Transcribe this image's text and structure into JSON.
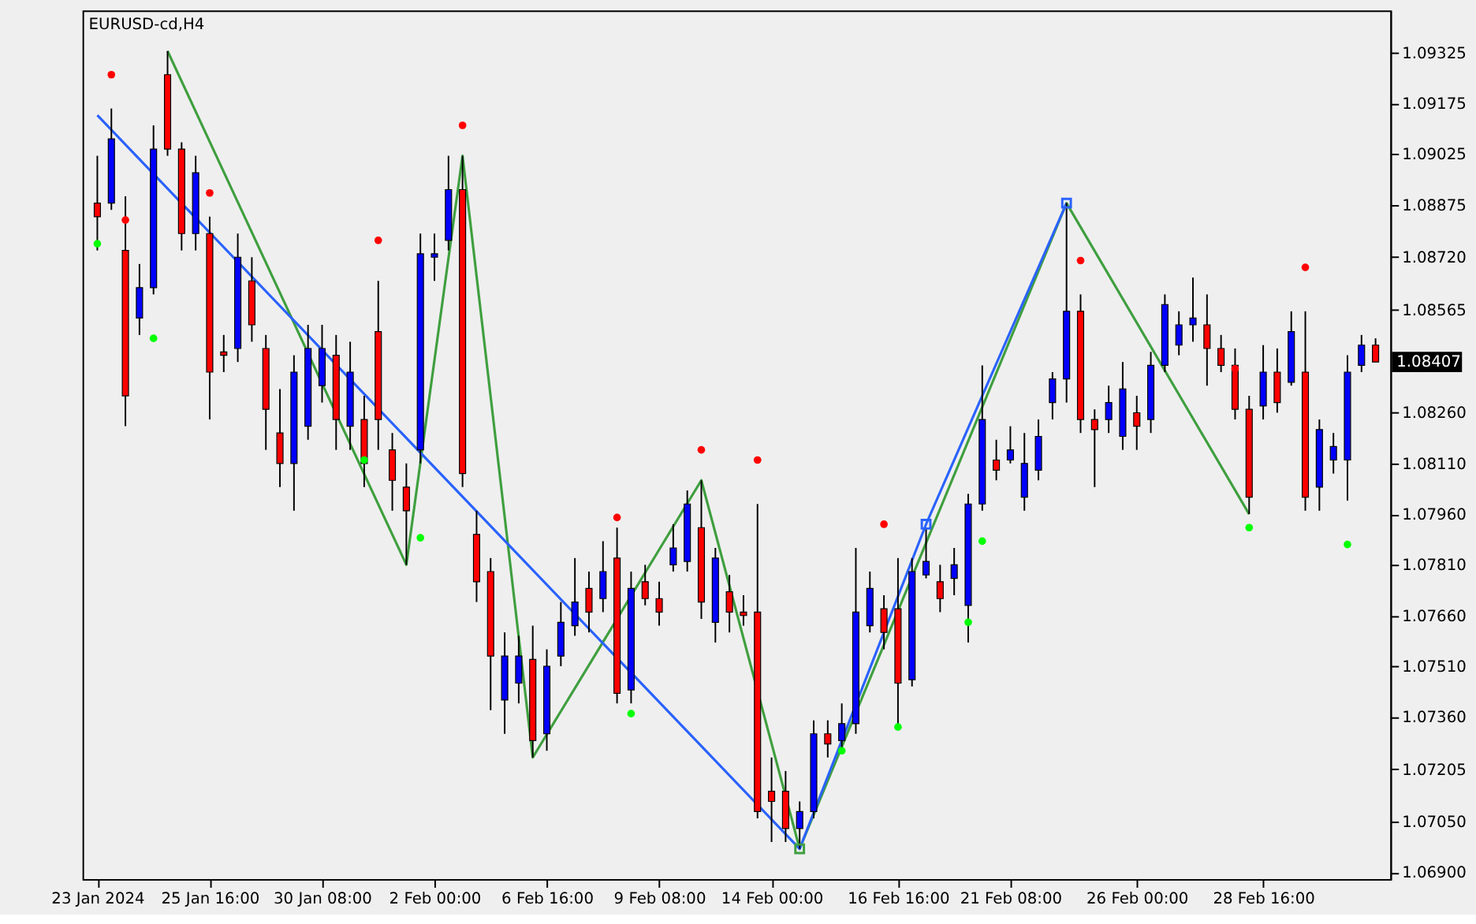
{
  "chart_data": {
    "type": "candlestick",
    "title": "EURUSD-cd,H4",
    "categories": [
      "23 Jan 2024",
      null,
      null,
      null,
      null,
      null,
      null,
      null,
      "25 Jan 16:00",
      null,
      null,
      null,
      null,
      null,
      null,
      null,
      "30 Jan 08:00",
      null,
      null,
      null,
      null,
      null,
      null,
      null,
      "2 Feb 00:00",
      null,
      null,
      null,
      null,
      null,
      null,
      null,
      "6 Feb 16:00",
      null,
      null,
      null,
      null,
      null,
      null,
      null,
      "9 Feb 08:00",
      null,
      null,
      null,
      null,
      null,
      null,
      null,
      "14 Feb 00:00",
      null,
      null,
      null,
      null,
      null,
      null,
      null,
      null,
      "16 Feb 16:00",
      null,
      null,
      null,
      null,
      null,
      null,
      null,
      "21 Feb 08:00",
      null,
      null,
      null,
      null,
      null,
      null,
      null,
      null,
      "26 Feb 00:00",
      null,
      null,
      null,
      null,
      null,
      null,
      null,
      null,
      "28 Feb 16:00",
      null,
      null,
      null,
      null,
      null,
      null,
      null,
      null
    ],
    "ohlc": [
      [
        1.0888,
        1.0902,
        1.0874,
        1.0884
      ],
      [
        1.0888,
        1.0916,
        1.0886,
        1.0907
      ],
      [
        1.0874,
        1.089,
        1.0822,
        1.0831
      ],
      [
        1.0854,
        1.087,
        1.0849,
        1.0863
      ],
      [
        1.0863,
        1.0911,
        1.0861,
        1.0904
      ],
      [
        1.0926,
        1.0933,
        1.0902,
        1.0904
      ],
      [
        1.0904,
        1.0906,
        1.0874,
        1.0879
      ],
      [
        1.0879,
        1.0902,
        1.0874,
        1.0897
      ],
      [
        1.0879,
        1.0884,
        1.0824,
        1.0838
      ],
      [
        1.0844,
        1.0849,
        1.0838,
        1.0843
      ],
      [
        1.0845,
        1.0879,
        1.0841,
        1.0872
      ],
      [
        1.0865,
        1.0872,
        1.0847,
        1.0852
      ],
      [
        1.0845,
        1.0849,
        1.0815,
        1.0827
      ],
      [
        1.082,
        1.0833,
        1.0804,
        1.0811
      ],
      [
        1.0811,
        1.0843,
        1.0797,
        1.0838
      ],
      [
        1.0822,
        1.0852,
        1.0818,
        1.0845
      ],
      [
        1.0834,
        1.0852,
        1.0829,
        1.0845
      ],
      [
        1.0843,
        1.0849,
        1.0815,
        1.0824
      ],
      [
        1.0822,
        1.0847,
        1.0815,
        1.0838
      ],
      [
        1.0824,
        1.0831,
        1.0804,
        1.0811
      ],
      [
        1.085,
        1.0865,
        1.0815,
        1.0824
      ],
      [
        1.0815,
        1.082,
        1.0797,
        1.0806
      ],
      [
        1.0804,
        1.0811,
        1.0781,
        1.0797
      ],
      [
        1.0815,
        1.0879,
        1.0811,
        1.0873
      ],
      [
        1.0872,
        1.0879,
        1.0865,
        1.0873
      ],
      [
        1.0877,
        1.0902,
        1.0874,
        1.0892
      ],
      [
        1.0892,
        1.0902,
        1.0804,
        1.0808
      ],
      [
        1.079,
        1.0797,
        1.077,
        1.0776
      ],
      [
        1.0779,
        1.0783,
        1.0738,
        1.0754
      ],
      [
        1.0741,
        1.0761,
        1.0731,
        1.0754
      ],
      [
        1.0746,
        1.076,
        1.074,
        1.0754
      ],
      [
        1.0753,
        1.0763,
        1.0724,
        1.0729
      ],
      [
        1.0731,
        1.0756,
        1.0726,
        1.0751
      ],
      [
        1.0754,
        1.077,
        1.0751,
        1.0764
      ],
      [
        1.0763,
        1.0783,
        1.076,
        1.077
      ],
      [
        1.0774,
        1.0779,
        1.0761,
        1.0767
      ],
      [
        1.0771,
        1.0788,
        1.0767,
        1.0779
      ],
      [
        1.0783,
        1.0792,
        1.074,
        1.0743
      ],
      [
        1.0744,
        1.0779,
        1.074,
        1.0774
      ],
      [
        1.0776,
        1.0781,
        1.0769,
        1.0771
      ],
      [
        1.0771,
        1.0776,
        1.0763,
        1.0767
      ],
      [
        1.0781,
        1.0793,
        1.0779,
        1.0786
      ],
      [
        1.0782,
        1.0803,
        1.0779,
        1.0799
      ],
      [
        1.0792,
        1.0806,
        1.0765,
        1.077
      ],
      [
        1.0764,
        1.0786,
        1.0758,
        1.0783
      ],
      [
        1.0773,
        1.0778,
        1.0761,
        1.0767
      ],
      [
        1.0767,
        1.0772,
        1.0763,
        1.0766
      ],
      [
        1.0767,
        1.0799,
        1.0706,
        1.0708
      ],
      [
        1.0714,
        1.0724,
        1.0699,
        1.0711
      ],
      [
        1.0714,
        1.072,
        1.0699,
        1.0703
      ],
      [
        1.0703,
        1.0711,
        1.0697,
        1.0708
      ],
      [
        1.0708,
        1.0735,
        1.0706,
        1.0731
      ],
      [
        1.0731,
        1.0735,
        1.0724,
        1.0728
      ],
      [
        1.0729,
        1.074,
        1.0726,
        1.0734
      ],
      [
        1.0734,
        1.0786,
        1.0731,
        1.0767
      ],
      [
        1.0763,
        1.0779,
        1.0761,
        1.0774
      ],
      [
        1.0768,
        1.0772,
        1.0756,
        1.0761
      ],
      [
        1.0768,
        1.0783,
        1.0733,
        1.0746
      ],
      [
        1.0747,
        1.0783,
        1.0745,
        1.0779
      ],
      [
        1.0778,
        1.0792,
        1.0777,
        1.0782
      ],
      [
        1.0776,
        1.0781,
        1.0767,
        1.0771
      ],
      [
        1.0777,
        1.0786,
        1.0772,
        1.0781
      ],
      [
        1.0769,
        1.0802,
        1.0758,
        1.0799
      ],
      [
        1.0799,
        1.084,
        1.0797,
        1.0824
      ],
      [
        1.0812,
        1.0818,
        1.0806,
        1.0809
      ],
      [
        1.0812,
        1.0822,
        1.0811,
        1.0815
      ],
      [
        1.0801,
        1.082,
        1.0797,
        1.0811
      ],
      [
        1.0809,
        1.0824,
        1.0806,
        1.0819
      ],
      [
        1.0829,
        1.0838,
        1.0824,
        1.0836
      ],
      [
        1.0836,
        1.0888,
        1.0829,
        1.0856
      ],
      [
        1.0856,
        1.0861,
        1.082,
        1.0824
      ],
      [
        1.0824,
        1.0827,
        1.0804,
        1.0821
      ],
      [
        1.0824,
        1.0834,
        1.082,
        1.0829
      ],
      [
        1.0819,
        1.0841,
        1.0815,
        1.0833
      ],
      [
        1.0826,
        1.0831,
        1.0815,
        1.0822
      ],
      [
        1.0824,
        1.0844,
        1.082,
        1.084
      ],
      [
        1.084,
        1.0861,
        1.0838,
        1.0858
      ],
      [
        1.0846,
        1.0856,
        1.0843,
        1.0852
      ],
      [
        1.0852,
        1.0866,
        1.0847,
        1.0854
      ],
      [
        1.0852,
        1.0861,
        1.0834,
        1.0845
      ],
      [
        1.0845,
        1.0849,
        1.0838,
        1.084
      ],
      [
        1.084,
        1.0845,
        1.0824,
        1.0827
      ],
      [
        1.0827,
        1.0831,
        1.0796,
        1.0801
      ],
      [
        1.0828,
        1.0846,
        1.0824,
        1.0838
      ],
      [
        1.0838,
        1.0845,
        1.0826,
        1.0829
      ],
      [
        1.0835,
        1.0856,
        1.0834,
        1.085
      ],
      [
        1.0838,
        1.0856,
        1.0797,
        1.0801
      ],
      [
        1.0804,
        1.0824,
        1.0797,
        1.0821
      ],
      [
        1.0812,
        1.082,
        1.0808,
        1.0816
      ],
      [
        1.0812,
        1.0843,
        1.08,
        1.0838
      ],
      [
        1.084,
        1.0849,
        1.0838,
        1.0846
      ],
      [
        1.0846,
        1.0848,
        1.0841,
        1.0841
      ]
    ],
    "colors": [
      "#ff0000",
      "#0000ff",
      "#ff0000",
      "#0000ff",
      "#0000ff",
      "#ff0000",
      "#ff0000",
      "#0000ff",
      "#ff0000",
      "#ff0000",
      "#0000ff",
      "#ff0000",
      "#ff0000",
      "#ff0000",
      "#0000ff",
      "#0000ff",
      "#0000ff",
      "#ff0000",
      "#0000ff",
      "#ff0000",
      "#ff0000",
      "#ff0000",
      "#ff0000",
      "#0000ff",
      "#0000ff",
      "#0000ff",
      "#ff0000",
      "#ff0000",
      "#ff0000",
      "#0000ff",
      "#0000ff",
      "#ff0000",
      "#0000ff",
      "#0000ff",
      "#0000ff",
      "#ff0000",
      "#0000ff",
      "#ff0000",
      "#0000ff",
      "#ff0000",
      "#ff0000",
      "#0000ff",
      "#0000ff",
      "#ff0000",
      "#0000ff",
      "#ff0000",
      "#ff0000",
      "#ff0000",
      "#ff0000",
      "#ff0000",
      "#0000ff",
      "#0000ff",
      "#ff0000",
      "#0000ff",
      "#0000ff",
      "#0000ff",
      "#ff0000",
      "#ff0000",
      "#0000ff",
      "#0000ff",
      "#ff0000",
      "#0000ff",
      "#0000ff",
      "#0000ff",
      "#ff0000",
      "#0000ff",
      "#0000ff",
      "#0000ff",
      "#0000ff",
      "#0000ff",
      "#ff0000",
      "#ff0000",
      "#0000ff",
      "#0000ff",
      "#ff0000",
      "#0000ff",
      "#0000ff",
      "#0000ff",
      "#0000ff",
      "#ff0000",
      "#ff0000",
      "#ff0000",
      "#ff0000",
      "#0000ff",
      "#ff0000",
      "#0000ff",
      "#ff0000",
      "#0000ff",
      "#0000ff",
      "#0000ff",
      "#0000ff",
      "#ff0000"
    ],
    "series": [
      {
        "type": "line",
        "color": "#3f9f3f",
        "values": [
          null,
          null,
          null,
          null,
          null,
          1.0933,
          null,
          null,
          null,
          null,
          null,
          null,
          null,
          null,
          null,
          null,
          null,
          null,
          null,
          null,
          null,
          null,
          1.0781,
          null,
          null,
          null,
          1.0902,
          null,
          null,
          null,
          null,
          1.0724,
          null,
          null,
          null,
          null,
          null,
          null,
          null,
          null,
          null,
          null,
          null,
          1.0806,
          null,
          null,
          null,
          null,
          null,
          null,
          1.0697,
          null,
          null,
          null,
          null,
          null,
          null,
          null,
          null,
          null,
          null,
          null,
          null,
          null,
          null,
          null,
          null,
          null,
          null,
          1.0888,
          null,
          null,
          null,
          null,
          null,
          null,
          null,
          null,
          null,
          null,
          null,
          null,
          1.0796,
          null,
          null,
          null,
          null,
          null,
          null,
          null,
          null,
          null
        ]
      },
      {
        "type": "line",
        "color": "#2a62ff",
        "values": [
          1.0914,
          null,
          null,
          null,
          null,
          null,
          null,
          null,
          null,
          null,
          null,
          null,
          null,
          null,
          null,
          null,
          null,
          null,
          null,
          null,
          null,
          null,
          null,
          null,
          null,
          null,
          null,
          null,
          null,
          null,
          null,
          null,
          null,
          null,
          null,
          null,
          null,
          null,
          null,
          null,
          null,
          null,
          null,
          null,
          null,
          null,
          null,
          null,
          null,
          null,
          1.0697,
          null,
          null,
          null,
          null,
          null,
          null,
          null,
          null,
          1.0793,
          null,
          null,
          null,
          null,
          null,
          null,
          null,
          null,
          null,
          1.0888,
          null,
          null,
          null,
          null,
          null,
          null,
          null,
          null,
          null,
          null,
          null,
          null,
          null,
          null,
          null,
          null,
          null,
          null,
          null,
          null,
          null,
          null
        ]
      },
      {
        "type": "scatter",
        "marker": "square",
        "color": "#2a62ff",
        "values": [
          null,
          null,
          null,
          null,
          null,
          null,
          null,
          null,
          null,
          null,
          null,
          null,
          null,
          null,
          null,
          null,
          null,
          null,
          null,
          null,
          null,
          null,
          null,
          null,
          null,
          null,
          null,
          null,
          null,
          null,
          null,
          null,
          null,
          null,
          null,
          null,
          null,
          null,
          null,
          null,
          null,
          null,
          null,
          null,
          null,
          null,
          null,
          null,
          null,
          null,
          null,
          null,
          null,
          null,
          null,
          null,
          null,
          null,
          null,
          1.0793,
          null,
          null,
          null,
          null,
          null,
          null,
          null,
          null,
          null,
          1.0888,
          null,
          null,
          null,
          null,
          null,
          null,
          null,
          null,
          null,
          null,
          null,
          null,
          null,
          null,
          null,
          null,
          null,
          null,
          null,
          null,
          null,
          null
        ]
      },
      {
        "type": "scatter",
        "marker": "square",
        "color": "#3f9f3f",
        "values": [
          null,
          null,
          null,
          null,
          null,
          null,
          null,
          null,
          null,
          null,
          null,
          null,
          null,
          null,
          null,
          null,
          null,
          null,
          null,
          null,
          null,
          null,
          null,
          null,
          null,
          null,
          null,
          null,
          null,
          null,
          null,
          null,
          null,
          null,
          null,
          null,
          null,
          null,
          null,
          null,
          null,
          null,
          null,
          null,
          null,
          null,
          null,
          null,
          null,
          null,
          1.0697,
          null,
          null,
          null,
          null,
          null,
          null,
          null,
          null,
          null,
          null,
          null,
          null,
          null,
          null,
          null,
          null,
          null,
          null,
          null,
          null,
          null,
          null,
          null,
          null,
          null,
          null,
          null,
          null,
          null,
          null,
          null,
          null,
          null,
          null,
          null,
          null,
          null,
          null,
          null,
          null,
          null
        ]
      },
      {
        "type": "scatter",
        "marker": "circle",
        "color": "#ff0000",
        "values": [
          null,
          1.0926,
          1.0883,
          null,
          null,
          null,
          null,
          null,
          1.0891,
          null,
          null,
          null,
          null,
          null,
          null,
          null,
          null,
          null,
          null,
          null,
          1.0877,
          null,
          null,
          null,
          null,
          null,
          null,
          null,
          null,
          null,
          null,
          null,
          null,
          null,
          null,
          null,
          null,
          1.0795,
          null,
          null,
          null,
          null,
          null,
          1.0815,
          null,
          null,
          null,
          null,
          null,
          null,
          null,
          null,
          null,
          null,
          null,
          null,
          1.0793,
          null,
          null,
          null,
          null,
          null,
          null,
          null,
          null,
          null,
          null,
          null,
          null,
          null,
          1.0871,
          null,
          null,
          null,
          null,
          null,
          null,
          null,
          null,
          null,
          null,
          1.0839,
          null,
          null,
          null,
          null,
          1.0869,
          null,
          null,
          null,
          null,
          null
        ]
      },
      {
        "type": "scatter",
        "marker": "circle",
        "color": "#00ff00",
        "values": [
          1.0876,
          null,
          null,
          null,
          1.0848,
          null,
          null,
          null,
          null,
          null,
          null,
          null,
          null,
          null,
          null,
          null,
          null,
          null,
          null,
          1.0812,
          null,
          null,
          null,
          1.0789,
          null,
          null,
          null,
          null,
          null,
          null,
          null,
          null,
          null,
          null,
          null,
          null,
          null,
          null,
          1.0737,
          null,
          null,
          null,
          null,
          null,
          null,
          null,
          null,
          null,
          null,
          null,
          null,
          null,
          null,
          1.0726,
          null,
          null,
          null,
          1.0733,
          null,
          null,
          null,
          null,
          1.0764,
          1.0788,
          null,
          null,
          null,
          null,
          null,
          null,
          null,
          null,
          null,
          null,
          null,
          null,
          null,
          null,
          null,
          null,
          null,
          null,
          1.0792,
          null,
          null,
          null,
          null,
          null,
          null,
          1.0787,
          null,
          null
        ]
      },
      {
        "type": "scatter",
        "marker": "circle",
        "color": "#ff0000",
        "values": [
          null,
          null,
          null,
          null,
          null,
          null,
          null,
          null,
          null,
          null,
          null,
          null,
          null,
          null,
          null,
          null,
          null,
          null,
          null,
          null,
          null,
          null,
          null,
          null,
          null,
          null,
          1.0911,
          null,
          null,
          null,
          null,
          null,
          null,
          null,
          null,
          null,
          null,
          null,
          null,
          null,
          null,
          null,
          null,
          null,
          null,
          null,
          null,
          1.0812,
          null,
          null,
          null,
          null,
          null,
          null,
          null,
          null,
          null,
          null,
          null,
          null,
          null,
          null,
          null,
          null,
          null,
          null,
          null,
          null,
          null,
          null,
          null,
          null,
          null,
          null,
          null,
          null,
          null,
          null,
          null,
          null,
          null,
          null,
          null,
          null,
          null,
          null,
          null,
          null,
          null,
          null,
          null,
          null
        ]
      }
    ],
    "ylim": [
      1.0688,
      1.0945
    ],
    "yticks": [
      {
        "value": 1.069,
        "label": "1.06900"
      },
      {
        "value": 1.0705,
        "label": "1.07050"
      },
      {
        "value": 1.07205,
        "label": "1.07205"
      },
      {
        "value": 1.0736,
        "label": "1.07360"
      },
      {
        "value": 1.0751,
        "label": "1.07510"
      },
      {
        "value": 1.0766,
        "label": "1.07660"
      },
      {
        "value": 1.0781,
        "label": "1.07810"
      },
      {
        "value": 1.0796,
        "label": "1.07960"
      },
      {
        "value": 1.0811,
        "label": "1.08110"
      },
      {
        "value": 1.0826,
        "label": "1.08260"
      },
      {
        "value": 1.08565,
        "label": "1.08565"
      },
      {
        "value": 1.0872,
        "label": "1.08720"
      },
      {
        "value": 1.08875,
        "label": "1.08875"
      },
      {
        "value": 1.09025,
        "label": "1.09025"
      },
      {
        "value": 1.09175,
        "label": "1.09175"
      },
      {
        "value": 1.09325,
        "label": "1.09325"
      }
    ],
    "annotations": [
      "1.08407"
    ]
  }
}
